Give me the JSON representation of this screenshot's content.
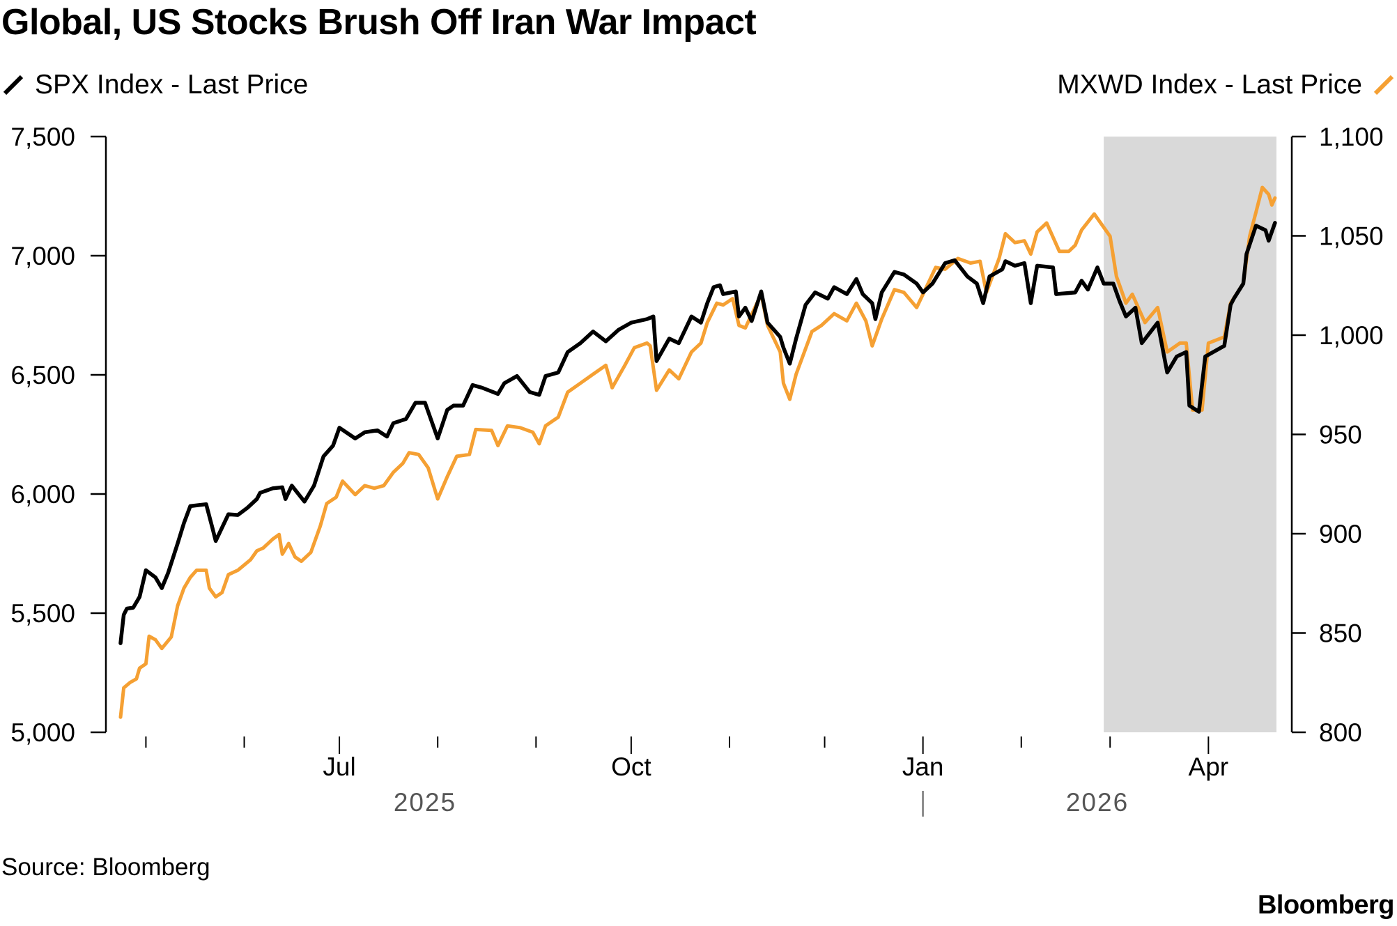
{
  "title": "Global, US Stocks Brush Off Iran War Impact",
  "source": "Source: Bloomberg",
  "logo": "Bloomberg",
  "colors": {
    "spx": "#000000",
    "mxwd": "#f5a033",
    "shade": "#d9d9d9"
  },
  "chart_data": {
    "type": "line",
    "title": "Global, US Stocks Brush Off Iran War Impact",
    "x_unit": "days since 2025-04-23",
    "xlim": [
      0,
      364
    ],
    "x_ticks": [
      {
        "day": 8,
        "label": ""
      },
      {
        "day": 39,
        "label": ""
      },
      {
        "day": 69,
        "label": "Jul"
      },
      {
        "day": 100,
        "label": ""
      },
      {
        "day": 131,
        "label": ""
      },
      {
        "day": 161,
        "label": "Oct"
      },
      {
        "day": 192,
        "label": ""
      },
      {
        "day": 222,
        "label": ""
      },
      {
        "day": 253,
        "label": "Jan"
      },
      {
        "day": 284,
        "label": ""
      },
      {
        "day": 312,
        "label": ""
      },
      {
        "day": 343,
        "label": "Apr"
      }
    ],
    "years": [
      {
        "label": "2025",
        "day": 96
      },
      {
        "label": "2026",
        "day": 308
      }
    ],
    "year_divider_day": 253,
    "shaded_range_days": [
      310,
      368
    ],
    "left_axis": {
      "ylim": [
        5000,
        7500
      ],
      "ticks": [
        "5,000",
        "5,500",
        "6,000",
        "6,500",
        "7,000",
        "7,500"
      ],
      "values": [
        5000,
        5500,
        6000,
        6500,
        7000,
        7500
      ]
    },
    "right_axis": {
      "ylim": [
        800,
        1100
      ],
      "ticks": [
        "800",
        "850",
        "900",
        "950",
        "1,000",
        "1,050",
        "1,100"
      ],
      "values": [
        800,
        850,
        900,
        950,
        1000,
        1050,
        1100
      ]
    },
    "series": [
      {
        "name": "SPX Index - Last Price",
        "axis": "left",
        "points": [
          [
            0,
            5374
          ],
          [
            1,
            5493
          ],
          [
            2,
            5519
          ],
          [
            4,
            5523
          ],
          [
            6,
            5568
          ],
          [
            8,
            5680
          ],
          [
            11,
            5650
          ],
          [
            13,
            5605
          ],
          [
            15,
            5669
          ],
          [
            18,
            5792
          ],
          [
            20,
            5878
          ],
          [
            22,
            5949
          ],
          [
            27,
            5957
          ],
          [
            29,
            5856
          ],
          [
            30,
            5803
          ],
          [
            34,
            5915
          ],
          [
            37,
            5912
          ],
          [
            40,
            5942
          ],
          [
            43,
            5979
          ],
          [
            44,
            6005
          ],
          [
            48,
            6024
          ],
          [
            51,
            6028
          ],
          [
            52,
            5979
          ],
          [
            54,
            6035
          ],
          [
            58,
            5968
          ],
          [
            61,
            6035
          ],
          [
            64,
            6158
          ],
          [
            67,
            6203
          ],
          [
            69,
            6278
          ],
          [
            74,
            6233
          ],
          [
            77,
            6259
          ],
          [
            81,
            6267
          ],
          [
            84,
            6241
          ],
          [
            86,
            6297
          ],
          [
            90,
            6315
          ],
          [
            93,
            6383
          ],
          [
            96,
            6383
          ],
          [
            100,
            6233
          ],
          [
            103,
            6353
          ],
          [
            105,
            6371
          ],
          [
            108,
            6371
          ],
          [
            111,
            6457
          ],
          [
            114,
            6446
          ],
          [
            119,
            6420
          ],
          [
            121,
            6465
          ],
          [
            125,
            6495
          ],
          [
            129,
            6428
          ],
          [
            132,
            6416
          ],
          [
            134,
            6495
          ],
          [
            138,
            6510
          ],
          [
            141,
            6596
          ],
          [
            145,
            6633
          ],
          [
            149,
            6682
          ],
          [
            153,
            6641
          ],
          [
            157,
            6689
          ],
          [
            161,
            6719
          ],
          [
            166,
            6734
          ],
          [
            168,
            6745
          ],
          [
            169,
            6558
          ],
          [
            173,
            6652
          ],
          [
            176,
            6633
          ],
          [
            180,
            6745
          ],
          [
            183,
            6719
          ],
          [
            185,
            6801
          ],
          [
            187,
            6868
          ],
          [
            189,
            6876
          ],
          [
            190,
            6839
          ],
          [
            194,
            6850
          ],
          [
            195,
            6745
          ],
          [
            197,
            6782
          ],
          [
            199,
            6726
          ],
          [
            202,
            6850
          ],
          [
            204,
            6719
          ],
          [
            208,
            6659
          ],
          [
            209,
            6614
          ],
          [
            211,
            6547
          ],
          [
            213,
            6652
          ],
          [
            216,
            6794
          ],
          [
            219,
            6846
          ],
          [
            223,
            6820
          ],
          [
            225,
            6868
          ],
          [
            229,
            6839
          ],
          [
            232,
            6902
          ],
          [
            234,
            6839
          ],
          [
            237,
            6801
          ],
          [
            238,
            6734
          ],
          [
            240,
            6846
          ],
          [
            244,
            6932
          ],
          [
            247,
            6921
          ],
          [
            251,
            6883
          ],
          [
            253,
            6846
          ],
          [
            256,
            6883
          ],
          [
            260,
            6969
          ],
          [
            263,
            6981
          ],
          [
            267,
            6913
          ],
          [
            270,
            6883
          ],
          [
            272,
            6801
          ],
          [
            274,
            6913
          ],
          [
            278,
            6943
          ],
          [
            279,
            6977
          ],
          [
            282,
            6958
          ],
          [
            285,
            6969
          ],
          [
            287,
            6801
          ],
          [
            289,
            6958
          ],
          [
            294,
            6951
          ],
          [
            295,
            6839
          ],
          [
            301,
            6846
          ],
          [
            303,
            6895
          ],
          [
            305,
            6858
          ],
          [
            308,
            6951
          ],
          [
            310,
            6883
          ],
          [
            313,
            6883
          ],
          [
            315,
            6809
          ],
          [
            317,
            6745
          ],
          [
            320,
            6782
          ],
          [
            322,
            6633
          ],
          [
            327,
            6719
          ],
          [
            330,
            6510
          ],
          [
            333,
            6577
          ],
          [
            336,
            6596
          ],
          [
            337,
            6371
          ],
          [
            340,
            6345
          ],
          [
            342,
            6577
          ],
          [
            348,
            6622
          ],
          [
            350,
            6794
          ],
          [
            351,
            6820
          ],
          [
            354,
            6883
          ],
          [
            355,
            7007
          ],
          [
            358,
            7126
          ],
          [
            361,
            7107
          ],
          [
            362,
            7063
          ],
          [
            364,
            7138
          ]
        ]
      },
      {
        "name": "MXWD Index - Last Price",
        "axis": "right",
        "points": [
          [
            0,
            807.6
          ],
          [
            1,
            822.4
          ],
          [
            3,
            825.1
          ],
          [
            5,
            826.9
          ],
          [
            6,
            832.3
          ],
          [
            8,
            834.5
          ],
          [
            9,
            848.4
          ],
          [
            11,
            846.6
          ],
          [
            13,
            842.2
          ],
          [
            16,
            848.0
          ],
          [
            18,
            863.7
          ],
          [
            20,
            872.6
          ],
          [
            22,
            878.0
          ],
          [
            24,
            881.6
          ],
          [
            27,
            881.6
          ],
          [
            28,
            872.6
          ],
          [
            30,
            868.2
          ],
          [
            32,
            870.4
          ],
          [
            34,
            879.4
          ],
          [
            37,
            881.6
          ],
          [
            41,
            886.9
          ],
          [
            43,
            891.4
          ],
          [
            45,
            892.8
          ],
          [
            48,
            897.3
          ],
          [
            50,
            899.6
          ],
          [
            51,
            889.7
          ],
          [
            53,
            895.1
          ],
          [
            55,
            888.3
          ],
          [
            57,
            886.1
          ],
          [
            60,
            890.6
          ],
          [
            63,
            904.0
          ],
          [
            65,
            915.2
          ],
          [
            68,
            918.4
          ],
          [
            70,
            926.5
          ],
          [
            74,
            919.7
          ],
          [
            77,
            924.2
          ],
          [
            80,
            922.9
          ],
          [
            83,
            924.2
          ],
          [
            86,
            930.9
          ],
          [
            89,
            935.4
          ],
          [
            91,
            940.8
          ],
          [
            94,
            939.9
          ],
          [
            97,
            933.2
          ],
          [
            100,
            917.5
          ],
          [
            103,
            928.7
          ],
          [
            106,
            939.0
          ],
          [
            110,
            939.9
          ],
          [
            112,
            952.5
          ],
          [
            117,
            952.0
          ],
          [
            119,
            944.4
          ],
          [
            122,
            954.3
          ],
          [
            126,
            953.4
          ],
          [
            130,
            951.1
          ],
          [
            132,
            945.3
          ],
          [
            134,
            954.3
          ],
          [
            138,
            958.7
          ],
          [
            141,
            971.3
          ],
          [
            145,
            975.8
          ],
          [
            149,
            980.3
          ],
          [
            153,
            984.8
          ],
          [
            155,
            973.5
          ],
          [
            159,
            984.8
          ],
          [
            162,
            993.7
          ],
          [
            166,
            996.0
          ],
          [
            167,
            994.6
          ],
          [
            169,
            972.2
          ],
          [
            173,
            982.5
          ],
          [
            176,
            978.0
          ],
          [
            180,
            991.5
          ],
          [
            183,
            996.0
          ],
          [
            185,
            1006.3
          ],
          [
            188,
            1016.1
          ],
          [
            190,
            1015.2
          ],
          [
            193,
            1018.4
          ],
          [
            195,
            1004.9
          ],
          [
            197,
            1003.6
          ],
          [
            202,
            1020.6
          ],
          [
            204,
            1004.9
          ],
          [
            208,
            991.5
          ],
          [
            209,
            975.8
          ],
          [
            211,
            967.7
          ],
          [
            213,
            980.3
          ],
          [
            218,
            1001.8
          ],
          [
            221,
            1004.9
          ],
          [
            225,
            1010.8
          ],
          [
            229,
            1007.2
          ],
          [
            232,
            1016.1
          ],
          [
            235,
            1007.2
          ],
          [
            237,
            994.6
          ],
          [
            240,
            1008.1
          ],
          [
            244,
            1022.9
          ],
          [
            247,
            1021.5
          ],
          [
            251,
            1013.9
          ],
          [
            253,
            1020.6
          ],
          [
            257,
            1034.1
          ],
          [
            260,
            1033.2
          ],
          [
            264,
            1038.6
          ],
          [
            268,
            1036.3
          ],
          [
            271,
            1037.2
          ],
          [
            273,
            1021.5
          ],
          [
            277,
            1038.6
          ],
          [
            279,
            1051.1
          ],
          [
            282,
            1046.6
          ],
          [
            285,
            1047.5
          ],
          [
            287,
            1040.8
          ],
          [
            289,
            1052.0
          ],
          [
            292,
            1056.5
          ],
          [
            296,
            1042.2
          ],
          [
            299,
            1042.2
          ],
          [
            301,
            1045.3
          ],
          [
            303,
            1052.9
          ],
          [
            307,
            1061.0
          ],
          [
            312,
            1049.8
          ],
          [
            314,
            1029.6
          ],
          [
            317,
            1016.1
          ],
          [
            319,
            1020.6
          ],
          [
            323,
            1006.3
          ],
          [
            327,
            1013.9
          ],
          [
            330,
            991.5
          ],
          [
            334,
            996.0
          ],
          [
            336,
            996.0
          ],
          [
            338,
            962.3
          ],
          [
            341,
            962.3
          ],
          [
            343,
            996.0
          ],
          [
            348,
            999.1
          ],
          [
            350,
            1016.1
          ],
          [
            354,
            1026.0
          ],
          [
            356,
            1049.8
          ],
          [
            358,
            1061.9
          ],
          [
            360,
            1074.4
          ],
          [
            362,
            1070.9
          ],
          [
            363,
            1065.5
          ],
          [
            364,
            1069.1
          ]
        ]
      }
    ],
    "legend": {
      "left": "SPX Index - Last Price",
      "right": "MXWD Index - Last Price",
      "placement": "top"
    }
  }
}
